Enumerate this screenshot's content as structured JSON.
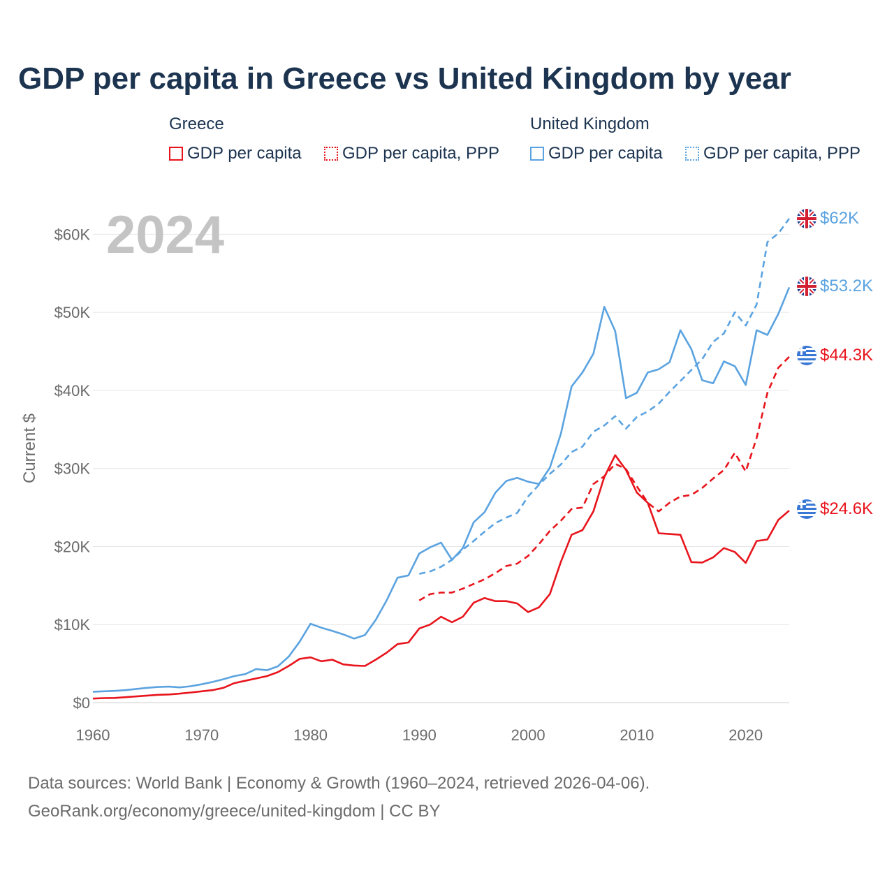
{
  "title": "GDP per capita in Greece vs United Kingdom by year",
  "legend": {
    "greece": {
      "title": "Greece",
      "items": [
        "GDP per capita",
        "GDP per capita, PPP"
      ]
    },
    "uk": {
      "title": "United Kingdom",
      "items": [
        "GDP per capita",
        "GDP per capita, PPP"
      ]
    }
  },
  "colors": {
    "greece": "#e8141c",
    "uk": "#5ba3e0",
    "grid": "#e6e6e6",
    "axis_text": "#6b6b6b",
    "year_watermark": "#c4c4c4"
  },
  "footer": {
    "line1": "Data sources: World Bank | Economy & Growth (1960–2024, retrieved 2026-04-06).",
    "line2": "GeoRank.org/economy/greece/united-kingdom | CC BY"
  },
  "chart_data": {
    "type": "line",
    "title": "GDP per capita in Greece vs United Kingdom by year",
    "year_label": "2024",
    "xlabel": "",
    "ylabel": "Current $",
    "xlim": [
      1960,
      2024
    ],
    "ylim": [
      0,
      62000
    ],
    "x_ticks": [
      "1960",
      "1970",
      "1980",
      "1990",
      "2000",
      "2010",
      "2020"
    ],
    "y_ticks": [
      {
        "value": 0,
        "label": "$0"
      },
      {
        "value": 10000,
        "label": "$10K"
      },
      {
        "value": 20000,
        "label": "$20K"
      },
      {
        "value": 30000,
        "label": "$30K"
      },
      {
        "value": 40000,
        "label": "$40K"
      },
      {
        "value": 50000,
        "label": "$50K"
      },
      {
        "value": 60000,
        "label": "$60K"
      }
    ],
    "series": [
      {
        "name": "Greece GDP per capita",
        "country": "greece",
        "style": "solid",
        "end_label": "$24.6K",
        "x": [
          1960,
          1961,
          1962,
          1963,
          1964,
          1965,
          1966,
          1967,
          1968,
          1969,
          1970,
          1971,
          1972,
          1973,
          1974,
          1975,
          1976,
          1977,
          1978,
          1979,
          1980,
          1981,
          1982,
          1983,
          1984,
          1985,
          1986,
          1987,
          1988,
          1989,
          1990,
          1991,
          1992,
          1993,
          1994,
          1995,
          1996,
          1997,
          1998,
          1999,
          2000,
          2001,
          2002,
          2003,
          2004,
          2005,
          2006,
          2007,
          2008,
          2009,
          2010,
          2011,
          2012,
          2013,
          2014,
          2015,
          2016,
          2017,
          2018,
          2019,
          2020,
          2021,
          2022,
          2023,
          2024
        ],
        "values": [
          520,
          580,
          600,
          700,
          800,
          900,
          1000,
          1050,
          1150,
          1300,
          1450,
          1600,
          1900,
          2500,
          2800,
          3100,
          3400,
          3900,
          4700,
          5600,
          5800,
          5300,
          5500,
          4900,
          4750,
          4700,
          5500,
          6400,
          7500,
          7700,
          9500,
          10000,
          11000,
          10300,
          11000,
          12800,
          13400,
          13000,
          13000,
          12700,
          11600,
          12200,
          13900,
          18000,
          21500,
          22100,
          24500,
          28900,
          31700,
          29800,
          26900,
          25600,
          21700,
          21600,
          21500,
          18000,
          17950,
          18600,
          19800,
          19300,
          17900,
          20700,
          20900,
          23400,
          24600
        ]
      },
      {
        "name": "Greece GDP per capita, PPP",
        "country": "greece",
        "style": "dashed",
        "end_label": "$44.3K",
        "x": [
          1990,
          1991,
          1992,
          1993,
          1994,
          1995,
          1996,
          1997,
          1998,
          1999,
          2000,
          2001,
          2002,
          2003,
          2004,
          2005,
          2006,
          2007,
          2008,
          2009,
          2010,
          2011,
          2012,
          2013,
          2014,
          2015,
          2016,
          2017,
          2018,
          2019,
          2020,
          2021,
          2022,
          2023,
          2024
        ],
        "values": [
          13100,
          13900,
          14100,
          14100,
          14600,
          15200,
          15800,
          16600,
          17500,
          17800,
          18800,
          20300,
          22000,
          23300,
          24800,
          25000,
          28000,
          29000,
          30600,
          29900,
          27700,
          25600,
          24500,
          25600,
          26400,
          26600,
          27500,
          28700,
          29800,
          32000,
          29600,
          33900,
          39700,
          42900,
          44300
        ]
      },
      {
        "name": "United Kingdom GDP per capita",
        "country": "uk",
        "style": "solid",
        "end_label": "$53.2K",
        "x": [
          1960,
          1961,
          1962,
          1963,
          1964,
          1965,
          1966,
          1967,
          1968,
          1969,
          1970,
          1971,
          1972,
          1973,
          1974,
          1975,
          1976,
          1977,
          1978,
          1979,
          1980,
          1981,
          1982,
          1983,
          1984,
          1985,
          1986,
          1987,
          1988,
          1989,
          1990,
          1991,
          1992,
          1993,
          1994,
          1995,
          1996,
          1997,
          1998,
          1999,
          2000,
          2001,
          2002,
          2003,
          2004,
          2005,
          2006,
          2007,
          2008,
          2009,
          2010,
          2011,
          2012,
          2013,
          2014,
          2015,
          2016,
          2017,
          2018,
          2019,
          2020,
          2021,
          2022,
          2023,
          2024
        ],
        "values": [
          1400,
          1450,
          1500,
          1600,
          1750,
          1900,
          2000,
          2050,
          1950,
          2100,
          2350,
          2650,
          3000,
          3400,
          3650,
          4300,
          4150,
          4650,
          5900,
          7800,
          10100,
          9600,
          9200,
          8750,
          8200,
          8650,
          10600,
          13100,
          16000,
          16300,
          19100,
          19900,
          20500,
          18300,
          19800,
          23100,
          24400,
          26900,
          28400,
          28800,
          28300,
          28000,
          30100,
          34400,
          40500,
          42300,
          44700,
          50700,
          47600,
          39000,
          39700,
          42300,
          42700,
          43600,
          47700,
          45300,
          41300,
          40900,
          43700,
          43100,
          40700,
          47700,
          47100,
          49800,
          53200
        ]
      },
      {
        "name": "United Kingdom GDP per capita, PPP",
        "country": "uk",
        "style": "dashed",
        "end_label": "$62K",
        "x": [
          1990,
          1991,
          1992,
          1993,
          1994,
          1995,
          1996,
          1997,
          1998,
          1999,
          2000,
          2001,
          2002,
          2003,
          2004,
          2005,
          2006,
          2007,
          2008,
          2009,
          2010,
          2011,
          2012,
          2013,
          2014,
          2015,
          2016,
          2017,
          2018,
          2019,
          2020,
          2021,
          2022,
          2023,
          2024
        ],
        "values": [
          16500,
          16800,
          17400,
          18300,
          19600,
          20700,
          21900,
          23000,
          23700,
          24300,
          26400,
          27900,
          29300,
          30500,
          32100,
          32800,
          34700,
          35500,
          36700,
          35100,
          36600,
          37300,
          38300,
          39800,
          41200,
          42600,
          44000,
          46200,
          47300,
          50000,
          48300,
          51000,
          59000,
          60100,
          62000
        ]
      }
    ]
  }
}
